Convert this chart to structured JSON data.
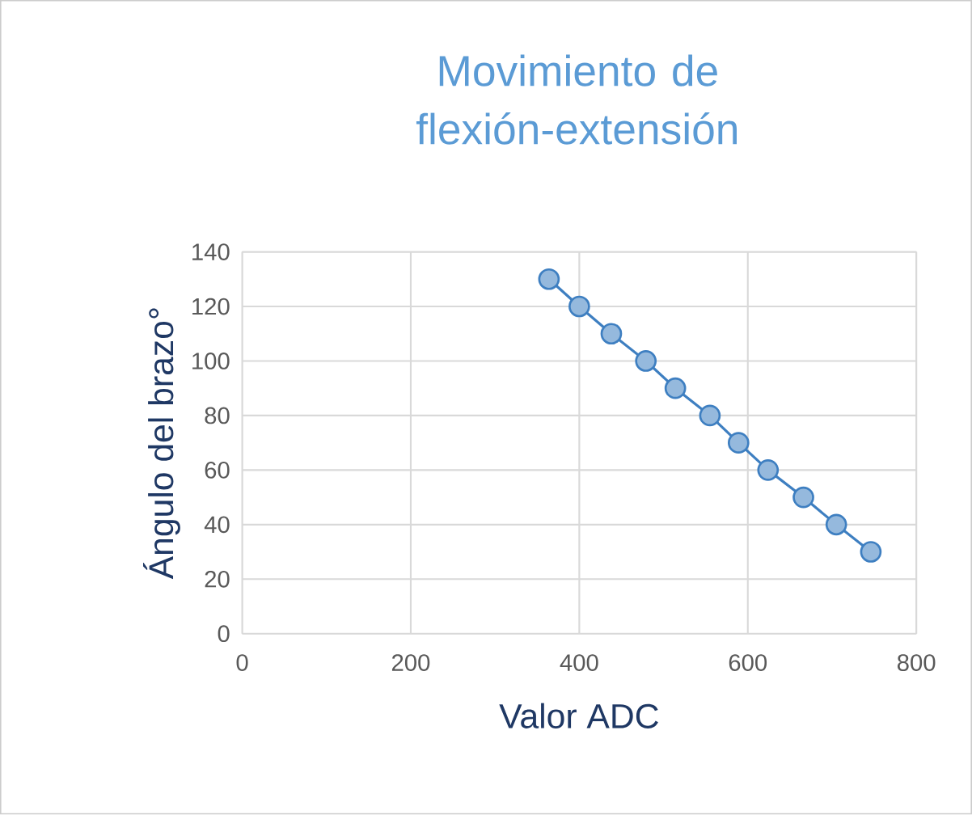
{
  "chart_data": {
    "type": "line",
    "title": "Movimiento de flexión-extensión",
    "xlabel": "Valor ADC",
    "ylabel": "Ángulo del brazo°",
    "x": [
      364,
      400,
      438,
      479,
      514,
      555,
      589,
      624,
      666,
      705,
      746
    ],
    "series": [
      {
        "color": "#3e7fc1",
        "values": [
          130,
          120,
          110,
          100,
          90,
          80,
          70,
          60,
          50,
          40,
          30
        ]
      }
    ],
    "xlim": [
      0,
      800
    ],
    "xticks": [
      0,
      200,
      400,
      600,
      800
    ],
    "ylim": [
      0,
      140
    ],
    "yticks": [
      0,
      20,
      40,
      60,
      80,
      100,
      120,
      140
    ],
    "grid": true,
    "marker": "circle",
    "line_style": "solid"
  }
}
